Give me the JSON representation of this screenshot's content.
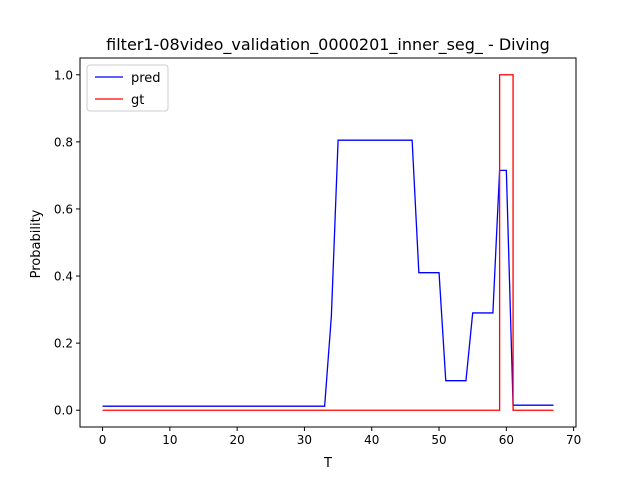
{
  "chart_data": {
    "type": "line",
    "title": "filter1-08video_validation_0000201_inner_seg_ - Diving",
    "xlabel": "T",
    "ylabel": "Probability",
    "xlim": [
      -3.35,
      70.35
    ],
    "ylim": [
      -0.05,
      1.05
    ],
    "xticks": [
      0,
      10,
      20,
      30,
      40,
      50,
      60,
      70
    ],
    "xtick_labels": [
      "0",
      "10",
      "20",
      "30",
      "40",
      "50",
      "60",
      "70"
    ],
    "yticks": [
      0.0,
      0.2,
      0.4,
      0.6,
      0.8,
      1.0
    ],
    "ytick_labels": [
      "0.0",
      "0.2",
      "0.4",
      "0.6",
      "0.8",
      "1.0"
    ],
    "grid": false,
    "legend_position": "top-left",
    "series": [
      {
        "name": "pred",
        "color": "#0000ff",
        "points": [
          [
            0,
            0.012
          ],
          [
            33,
            0.012
          ],
          [
            34,
            0.28
          ],
          [
            35,
            0.805
          ],
          [
            46,
            0.805
          ],
          [
            47,
            0.41
          ],
          [
            50,
            0.41
          ],
          [
            51,
            0.088
          ],
          [
            54,
            0.088
          ],
          [
            55,
            0.29
          ],
          [
            58,
            0.29
          ],
          [
            59,
            0.715
          ],
          [
            60,
            0.715
          ],
          [
            61,
            0.015
          ],
          [
            67,
            0.015
          ]
        ]
      },
      {
        "name": "gt",
        "color": "#ff0000",
        "points": [
          [
            0,
            0
          ],
          [
            59,
            0
          ],
          [
            59,
            1
          ],
          [
            61,
            1
          ],
          [
            61,
            0
          ],
          [
            67,
            0
          ]
        ]
      }
    ]
  }
}
